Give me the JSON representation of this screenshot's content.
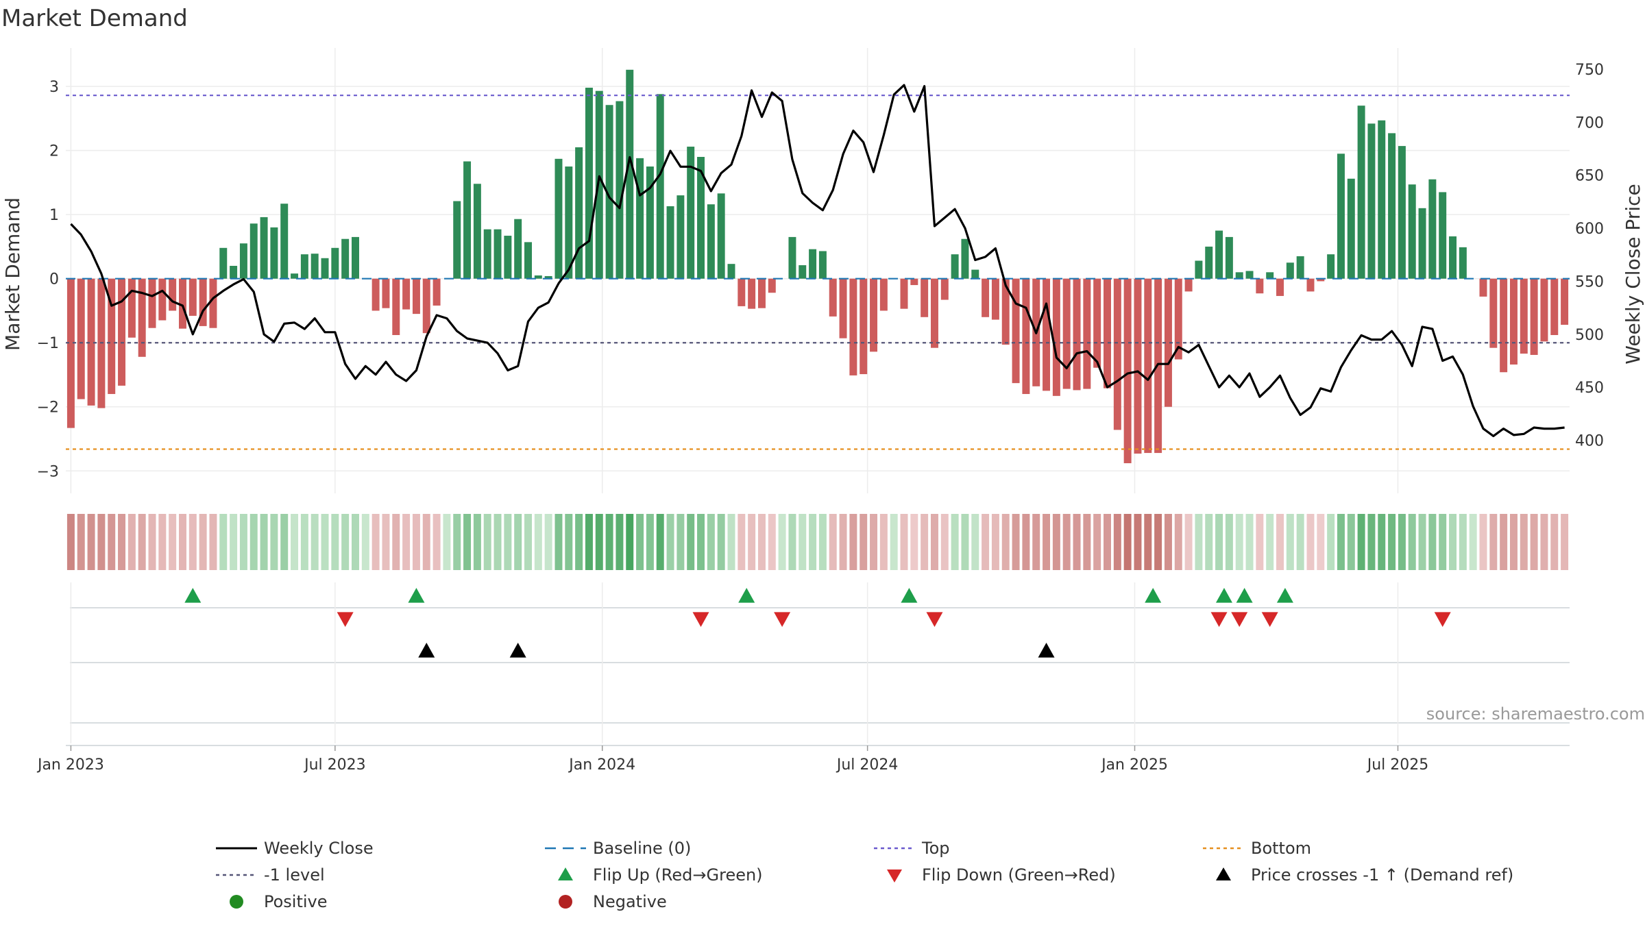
{
  "title": "Market Demand",
  "source": "source: sharemaestro.com",
  "colors": {
    "positive_bar": "#2e8b57",
    "negative_bar": "#cd5c5c",
    "price_line": "#000000",
    "baseline": "#1f77b4",
    "top_line": "#6a5acd",
    "minus1_line": "#555577",
    "bottom_line": "#e69020",
    "flip_up": "#1e9e4a",
    "flip_down": "#d62728",
    "price_cross": "#000000",
    "positive_dot": "#228b22",
    "negative_dot": "#b22222"
  },
  "chart_data": {
    "type": "bar",
    "title": "Market Demand",
    "ylabel": "Market Demand",
    "y2label": "Weekly Close Price",
    "ylim": [
      -3.35,
      3.6
    ],
    "y2lim": [
      350,
      770
    ],
    "yticks": [
      "3",
      "2",
      "1",
      "0",
      "−1",
      "−2",
      "−3"
    ],
    "y2ticks": [
      "750",
      "700",
      "650",
      "600",
      "550",
      "500",
      "450",
      "400"
    ],
    "xtick_labels": [
      "Jan 2023",
      "Jul 2023",
      "Jan 2024",
      "Jul 2024",
      "Jan 2025",
      "Jul 2025"
    ],
    "xtick_weeks": [
      0,
      26,
      52.3,
      78.4,
      104.7,
      130.6
    ],
    "levels": {
      "top": 2.86,
      "minus1": -1.0,
      "bottom": -2.66,
      "baseline": 0
    },
    "demand": [
      -2.33,
      -1.88,
      -1.98,
      -2.02,
      -1.8,
      -1.67,
      -0.92,
      -1.22,
      -0.77,
      -0.65,
      -0.5,
      -0.78,
      -0.58,
      -0.74,
      -0.77,
      0.48,
      0.2,
      0.55,
      0.86,
      0.96,
      0.8,
      1.17,
      0.08,
      0.38,
      0.39,
      0.32,
      0.48,
      0.62,
      0.65,
      0.0,
      -0.5,
      -0.46,
      -0.88,
      -0.48,
      -0.55,
      -0.85,
      -0.42,
      0.0,
      1.21,
      1.83,
      1.48,
      0.77,
      0.77,
      0.67,
      0.93,
      0.57,
      0.05,
      0.04,
      1.87,
      1.75,
      2.05,
      2.98,
      2.93,
      2.71,
      2.77,
      3.26,
      1.88,
      1.75,
      2.88,
      1.13,
      1.3,
      2.06,
      1.9,
      1.16,
      1.33,
      0.23,
      -0.43,
      -0.47,
      -0.46,
      -0.22,
      0.0,
      0.65,
      0.21,
      0.46,
      0.43,
      -0.59,
      -0.93,
      -1.51,
      -1.49,
      -1.14,
      -0.5,
      0.0,
      -0.47,
      -0.1,
      -0.6,
      -1.08,
      -0.33,
      0.38,
      0.62,
      0.14,
      -0.6,
      -0.64,
      -1.03,
      -1.63,
      -1.8,
      -1.68,
      -1.75,
      -1.83,
      -1.72,
      -1.74,
      -1.72,
      -1.39,
      -1.71,
      -2.36,
      -2.88,
      -2.73,
      -2.72,
      -2.72,
      -2.0,
      -1.26,
      -0.2,
      0.28,
      0.5,
      0.75,
      0.65,
      0.1,
      0.12,
      -0.23,
      0.1,
      -0.27,
      0.25,
      0.35,
      -0.2,
      -0.04,
      0.38,
      1.95,
      1.56,
      2.7,
      2.42,
      2.47,
      2.27,
      2.07,
      1.47,
      1.1,
      1.55,
      1.35,
      0.66,
      0.49,
      0.0,
      -0.28,
      -1.08,
      -1.46,
      -1.34,
      -1.17,
      -1.19,
      -0.98,
      -0.88,
      -0.72
    ],
    "close": [
      604,
      594,
      578,
      557,
      527,
      531,
      541,
      539,
      536,
      541,
      531,
      527,
      500,
      522,
      534,
      541,
      547,
      552,
      540,
      500,
      493,
      510,
      511,
      505,
      515,
      502,
      502,
      472,
      458,
      470,
      462,
      474,
      462,
      456,
      466,
      498,
      518,
      515,
      503,
      496,
      494,
      492,
      482,
      466,
      470,
      512,
      525,
      530,
      548,
      561,
      581,
      588,
      649,
      629,
      619,
      667,
      631,
      638,
      651,
      673,
      658,
      658,
      654,
      635,
      652,
      660,
      687,
      730,
      705,
      728,
      720,
      665,
      633,
      624,
      617,
      636,
      670,
      692,
      681,
      653,
      688,
      726,
      735,
      710,
      734,
      602,
      610,
      618,
      600,
      570,
      573,
      581,
      546,
      529,
      525,
      501,
      529,
      478,
      468,
      482,
      484,
      474,
      450,
      456,
      463,
      465,
      457,
      472,
      472,
      488,
      483,
      490,
      470,
      450,
      461,
      450,
      463,
      441,
      450,
      461,
      440,
      424,
      431,
      449,
      446,
      469,
      485,
      499,
      495,
      495,
      503,
      490,
      470,
      507,
      505,
      475,
      479,
      462,
      432,
      411,
      404,
      411,
      405,
      406,
      412,
      411,
      411,
      412
    ],
    "series": [
      {
        "name": "Weekly Close",
        "values": "close"
      },
      {
        "name": "Market Demand",
        "values": "demand"
      }
    ],
    "legend": [
      {
        "label": "Weekly Close",
        "kind": "line-solid"
      },
      {
        "label": "Baseline (0)",
        "kind": "line-dashed"
      },
      {
        "label": "Top",
        "kind": "line-dotted-top"
      },
      {
        "label": "Bottom",
        "kind": "line-dotted-bottom"
      },
      {
        "label": "-1 level",
        "kind": "line-dotted-minus1"
      },
      {
        "label": "Flip Up (Red→Green)",
        "kind": "tri-up"
      },
      {
        "label": "Flip Down (Green→Red)",
        "kind": "tri-down"
      },
      {
        "label": "Price crosses -1 ↑ (Demand ref)",
        "kind": "tri-black"
      },
      {
        "label": "Positive",
        "kind": "dot-green"
      },
      {
        "label": "Negative",
        "kind": "dot-red"
      }
    ],
    "legend_position": "bottom",
    "flip_up_weeks": [
      12,
      34,
      66.5,
      82.5,
      106.5,
      113.5,
      115.5,
      119.5
    ],
    "flip_down_weeks": [
      27,
      62,
      70,
      85,
      113,
      115,
      118,
      135
    ],
    "price_cross_weeks": [
      35,
      44,
      96
    ]
  }
}
